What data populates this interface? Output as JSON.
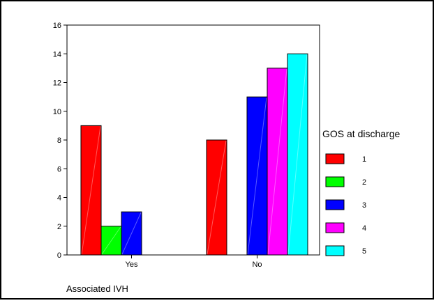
{
  "chart_data": {
    "type": "bar",
    "categories": [
      "Yes",
      "No"
    ],
    "series": [
      {
        "name": "1",
        "color": "#ff0000",
        "values": [
          9,
          8
        ]
      },
      {
        "name": "2",
        "color": "#00ff00",
        "values": [
          2,
          0
        ]
      },
      {
        "name": "3",
        "color": "#0000ff",
        "values": [
          3,
          11
        ]
      },
      {
        "name": "4",
        "color": "#ff00ff",
        "values": [
          0,
          13
        ]
      },
      {
        "name": "5",
        "color": "#00ffff",
        "values": [
          0,
          14
        ]
      }
    ],
    "xlabel": "Associated IVH",
    "ylabel": "",
    "ylim": [
      0,
      16
    ],
    "yticks": [
      0,
      2,
      4,
      6,
      8,
      10,
      12,
      14,
      16
    ],
    "legend_title": "GOS at discharge",
    "legend_position": "right",
    "grid": false
  }
}
